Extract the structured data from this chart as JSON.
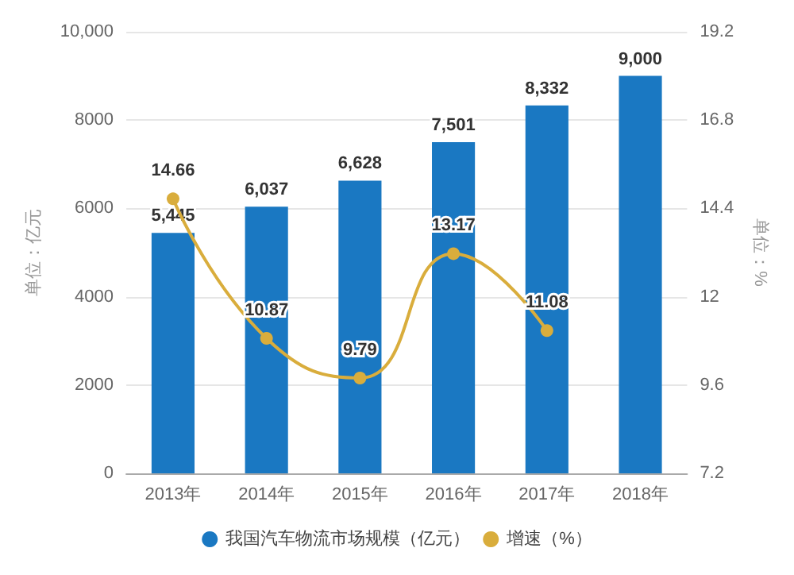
{
  "chart_data": {
    "type": "bar",
    "ylabel": "单位：亿元",
    "y2label": "单位：%",
    "categories": [
      "2013年",
      "2014年",
      "2015年",
      "2016年",
      "2017年",
      "2018年"
    ],
    "series": [
      {
        "name": "我国汽车物流市场规模（亿元）",
        "color": "#1a78c2",
        "values": [
          5445,
          6037,
          6628,
          7501,
          8332,
          9000
        ],
        "value_labels": [
          "5,445",
          "6,037",
          "6,628",
          "7,501",
          "8,332",
          "9,000"
        ]
      },
      {
        "name": "增速（%）",
        "type": "line",
        "axis": "y2",
        "color": "#d9ad3c",
        "values": [
          14.66,
          10.87,
          9.79,
          13.17,
          11.08,
          null
        ],
        "value_labels": [
          "14.66",
          "10.87",
          "9.79",
          "13.17",
          "11.08",
          null
        ]
      }
    ],
    "ylim": [
      0,
      10000
    ],
    "yticks": [
      0,
      2000,
      4000,
      6000,
      8000,
      {
        "value": 10000,
        "label": "10,000"
      }
    ],
    "y2lim": [
      7.2,
      19.2
    ],
    "y2ticks": [
      7.2,
      9.6,
      12,
      14.4,
      16.8,
      19.2
    ],
    "grid": "y",
    "legend": "bottom",
    "marker": "circle"
  }
}
